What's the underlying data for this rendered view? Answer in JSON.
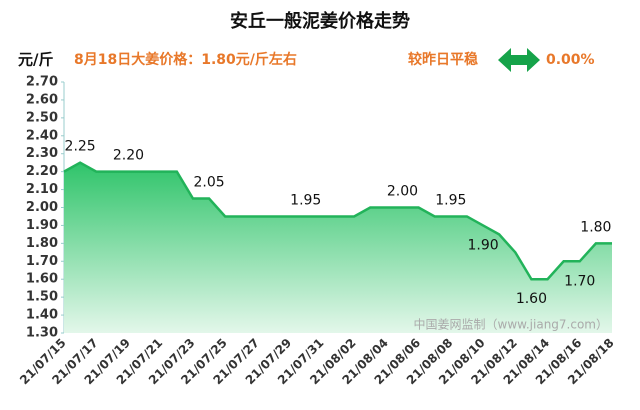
{
  "chart_data": {
    "type": "area",
    "title": "安丘一般泥姜价格走势",
    "y_unit": "元/斤",
    "subtitle": "8月18日大姜价格：1.80元/斤左右",
    "change_text": "较昨日平稳",
    "change_value": "0.00%",
    "watermark": "中国姜网监制（www.jiang7.com）",
    "color": "#22b35a",
    "categories": [
      "21/07/15",
      null,
      "21/07/17",
      null,
      "21/07/19",
      null,
      "21/07/21",
      null,
      "21/07/23",
      null,
      "21/07/25",
      null,
      "21/07/27",
      null,
      "21/07/29",
      null,
      "21/07/31",
      null,
      "21/08/02",
      null,
      "21/08/04",
      null,
      "21/08/06",
      null,
      "21/08/08",
      null,
      "21/08/10",
      null,
      "21/08/12",
      null,
      "21/08/14",
      null,
      "21/08/16",
      null,
      "21/08/18"
    ],
    "values": [
      2.2,
      2.25,
      2.2,
      2.2,
      2.2,
      2.2,
      2.2,
      2.2,
      2.05,
      2.05,
      1.95,
      1.95,
      1.95,
      1.95,
      1.95,
      1.95,
      1.95,
      1.95,
      1.95,
      2.0,
      2.0,
      2.0,
      2.0,
      1.95,
      1.95,
      1.95,
      1.9,
      1.85,
      1.75,
      1.6,
      1.6,
      1.7,
      1.7,
      1.8,
      1.8
    ],
    "value_labels": [
      null,
      "2.25",
      null,
      null,
      "2.20",
      null,
      null,
      null,
      null,
      "2.05",
      null,
      null,
      null,
      null,
      null,
      "1.95",
      null,
      null,
      null,
      null,
      null,
      "2.00",
      null,
      null,
      "1.95",
      null,
      "1.90",
      null,
      null,
      "1.60",
      null,
      null,
      "1.70",
      "1.80",
      null
    ],
    "ylim": [
      1.3,
      2.7
    ],
    "yticks": [
      {
        "value": 1.3,
        "label": "1.30"
      },
      {
        "value": 1.4,
        "label": "1.40"
      },
      {
        "value": 1.5,
        "label": "1.50"
      },
      {
        "value": 1.6,
        "label": "1.60"
      },
      {
        "value": 1.7,
        "label": "1.70"
      },
      {
        "value": 1.8,
        "label": "1.80"
      },
      {
        "value": 1.9,
        "label": "1.90"
      },
      {
        "value": 2.0,
        "label": "2.00"
      },
      {
        "value": 2.1,
        "label": "2.10"
      },
      {
        "value": 2.2,
        "label": "2.20"
      },
      {
        "value": 2.3,
        "label": "2.30"
      },
      {
        "value": 2.4,
        "label": "2.40"
      },
      {
        "value": 2.5,
        "label": "2.50"
      },
      {
        "value": 2.6,
        "label": "2.60"
      },
      {
        "value": 2.7,
        "label": "2.70"
      }
    ]
  }
}
